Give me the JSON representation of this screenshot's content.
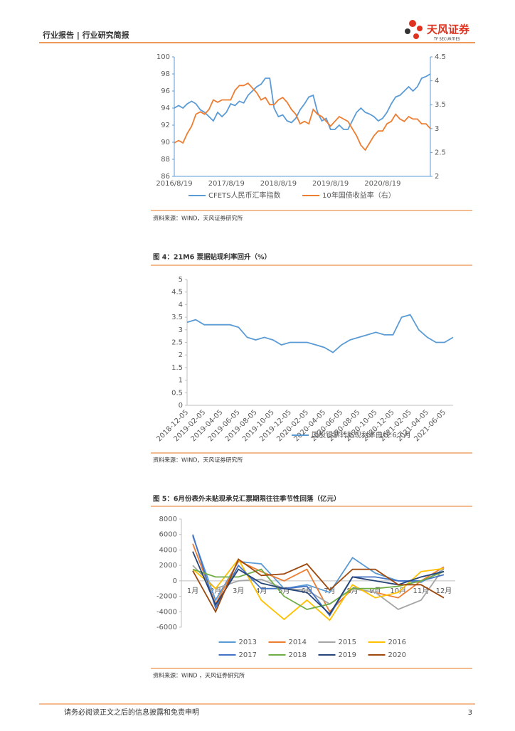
{
  "header": {
    "left": "行业报告 | 行业研究简报",
    "logo": "天风证券",
    "logo_sub": "TF SECURITIES"
  },
  "footer": {
    "disclaimer": "请务必阅读正文之后的信息披露和免责申明",
    "page": "3"
  },
  "chart_data": [
    {
      "type": "line",
      "source": "资料来源：WIND，天风证券研究所",
      "categories": [
        "2016/8/19",
        null,
        null,
        null,
        null,
        null,
        null,
        null,
        null,
        null,
        null,
        null,
        "2017/8/19",
        null,
        null,
        null,
        null,
        null,
        null,
        null,
        null,
        null,
        null,
        null,
        "2018/8/19",
        null,
        null,
        null,
        null,
        null,
        null,
        null,
        null,
        null,
        null,
        null,
        "2019/8/19",
        null,
        null,
        null,
        null,
        null,
        null,
        null,
        null,
        null,
        null,
        null,
        "2020/8/19",
        null,
        null,
        null,
        null,
        null,
        null,
        null,
        null,
        null,
        null,
        null
      ],
      "ylim": [
        86,
        100
      ],
      "yticks": [
        86,
        88,
        90,
        92,
        94,
        96,
        98,
        100
      ],
      "y2lim": [
        2,
        4.5
      ],
      "y2ticks": [
        2,
        2.5,
        3,
        3.5,
        4,
        4.5
      ],
      "series": [
        {
          "name": "CFETS人民币汇率指数",
          "color": "#5b9bd5",
          "values": [
            94.0,
            94.3,
            94.0,
            94.5,
            94.8,
            94.5,
            93.8,
            93.5,
            93.0,
            92.5,
            93.5,
            93.0,
            93.5,
            94.5,
            94.3,
            94.8,
            94.6,
            95.5,
            96.0,
            96.5,
            96.8,
            97.5,
            97.5,
            94.0,
            93.0,
            93.2,
            92.5,
            92.3,
            92.8,
            93.8,
            94.5,
            95.3,
            95.5,
            93.5,
            92.5,
            92.8,
            91.5,
            91.5,
            92.0,
            91.5,
            91.5,
            92.5,
            93.5,
            94.0,
            93.5,
            93.3,
            93.0,
            92.5,
            92.8,
            93.5,
            94.5,
            95.3,
            95.5,
            96.0,
            96.5,
            96.0,
            96.5,
            97.5,
            97.7,
            98.0
          ]
        },
        {
          "name": "10年国债收益率（右）",
          "color": "#ed7d31",
          "axis": "y2",
          "values": [
            2.7,
            2.75,
            2.7,
            2.9,
            3.05,
            3.3,
            3.35,
            3.3,
            3.4,
            3.6,
            3.55,
            3.6,
            3.6,
            3.6,
            3.8,
            3.9,
            3.9,
            3.95,
            3.85,
            3.75,
            3.6,
            3.65,
            3.5,
            3.5,
            3.6,
            3.65,
            3.55,
            3.4,
            3.3,
            3.1,
            3.15,
            3.1,
            3.4,
            3.3,
            3.25,
            3.15,
            3.05,
            3.15,
            3.25,
            3.2,
            3.15,
            3.0,
            2.85,
            2.65,
            2.55,
            2.7,
            2.85,
            2.95,
            2.95,
            3.1,
            3.15,
            3.3,
            3.2,
            3.15,
            3.25,
            3.2,
            3.2,
            3.1,
            3.1,
            3.0
          ]
        }
      ]
    },
    {
      "type": "line",
      "title": "图 4：21M6 票据贴现利率回升（%）",
      "source": "资料来源：WIND，天风证券研究所",
      "categories": [
        "2018-12-05",
        null,
        "2019-02-05",
        null,
        "2019-04-05",
        null,
        "2019-06-05",
        null,
        "2019-08-05",
        null,
        "2019-10-05",
        null,
        "2019-12-05",
        null,
        "2020-02-05",
        null,
        "2020-04-05",
        null,
        "2020-06-05",
        null,
        "2020-08-05",
        null,
        "2020-10-05",
        null,
        "2020-12-05",
        null,
        "2021-02-05",
        null,
        "2021-04-05",
        null,
        "2021-06-05",
        null
      ],
      "ylim": [
        0,
        5
      ],
      "yticks": [
        0,
        0.5,
        1,
        1.5,
        2,
        2.5,
        3,
        3.5,
        4,
        4.5,
        5
      ],
      "series": [
        {
          "name": "国股银票转贴现利率曲线:6个月",
          "color": "#5b9bd5",
          "values": [
            3.3,
            3.4,
            3.2,
            3.2,
            3.2,
            3.2,
            3.1,
            2.7,
            2.6,
            2.7,
            2.6,
            2.4,
            2.5,
            2.5,
            2.5,
            2.4,
            2.3,
            2.1,
            2.4,
            2.6,
            2.7,
            2.8,
            2.9,
            2.8,
            2.8,
            3.5,
            3.6,
            3.0,
            2.7,
            2.5,
            2.5,
            2.7
          ]
        }
      ]
    },
    {
      "type": "line",
      "title": "图 5：6月份表外未贴现承兑汇票期限往往季节性回落（亿元）",
      "source": "资料来源：WIND ，天风证券研究所",
      "categories": [
        "1月",
        "2月",
        "3月",
        "4月",
        "5月",
        "6月",
        "7月",
        "8月",
        "9月",
        "10月",
        "11月",
        "12月"
      ],
      "ylim": [
        -6000,
        8000
      ],
      "yticks": [
        -6000,
        -4000,
        -2000,
        0,
        2000,
        4000,
        6000,
        8000
      ],
      "series": [
        {
          "name": "2013",
          "color": "#5b9bd5",
          "values": [
            5800,
            -2500,
            2500,
            2200,
            -1000,
            -500,
            -1500,
            3000,
            1000,
            0,
            -200,
            1500
          ]
        },
        {
          "name": "2014",
          "color": "#ed7d31",
          "values": [
            4800,
            -3000,
            2600,
            1200,
            0,
            1500,
            -4000,
            -1000,
            -1500,
            -2200,
            0,
            1800
          ]
        },
        {
          "name": "2015",
          "color": "#a5a5a5",
          "values": [
            2000,
            -1000,
            0,
            200,
            -1000,
            -1200,
            -3000,
            -1000,
            -1500,
            -3700,
            -2500,
            1700
          ]
        },
        {
          "name": "2016",
          "color": "#ffc000",
          "values": [
            1500,
            -1000,
            2800,
            -2500,
            -5000,
            -2500,
            -5100,
            -500,
            -2200,
            -1500,
            1200,
            1600
          ]
        },
        {
          "name": "2017",
          "color": "#4472c4",
          "values": [
            6000,
            -3500,
            2000,
            -1000,
            -1000,
            -700,
            -4500,
            500,
            500,
            0,
            0,
            800
          ]
        },
        {
          "name": "2018",
          "color": "#70ad47",
          "values": [
            1500,
            500,
            500,
            1500,
            -2000,
            -3700,
            -3000,
            -1000,
            -1000,
            -700,
            0,
            1200
          ]
        },
        {
          "name": "2019",
          "color": "#264478",
          "values": [
            3800,
            -3100,
            1500,
            -300,
            -1000,
            -1500,
            -4300,
            500,
            0,
            -500,
            500,
            1200
          ]
        },
        {
          "name": "2020",
          "color": "#9e480e",
          "values": [
            1300,
            -4000,
            2800,
            700,
            900,
            2200,
            -1200,
            1500,
            1500,
            -500,
            -500,
            -2200
          ]
        }
      ]
    }
  ]
}
